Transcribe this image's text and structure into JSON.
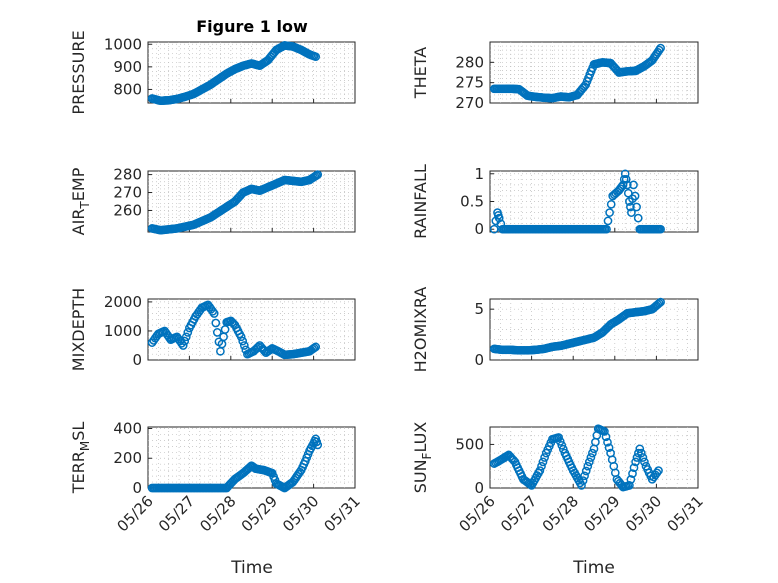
{
  "figure": {
    "title": "Figure 1 low",
    "xlabel": "Time",
    "marker_color": "#0072bd",
    "grid": true
  },
  "chart_data": [
    {
      "type": "scatter",
      "ylabel": "PRESSURE",
      "ylim": [
        740,
        1010
      ],
      "yticks": [
        "800",
        "900",
        "1000"
      ],
      "ytick_values": [
        800,
        900,
        1000
      ],
      "xlim": [
        0,
        5
      ],
      "xtick_labels": [
        "05/26",
        "05/27",
        "05/28",
        "05/29",
        "05/30",
        "05/31"
      ],
      "series": [
        {
          "x_days": [
            0.1,
            0.3,
            0.5,
            0.7,
            0.9,
            1.1,
            1.3,
            1.5,
            1.7,
            1.9,
            2.1,
            2.3,
            2.5,
            2.7,
            2.9,
            3.1,
            3.3,
            3.5,
            3.7,
            3.9,
            4.05
          ],
          "values": [
            760,
            750,
            752,
            758,
            768,
            780,
            800,
            820,
            845,
            870,
            890,
            905,
            915,
            905,
            930,
            975,
            995,
            990,
            975,
            955,
            945
          ]
        }
      ]
    },
    {
      "type": "scatter",
      "ylabel": "THETA",
      "ylim": [
        270,
        285
      ],
      "yticks": [
        "270",
        "275",
        "280"
      ],
      "ytick_values": [
        270,
        275,
        280
      ],
      "xlim": [
        0,
        5
      ],
      "xtick_labels": [
        "05/26",
        "05/27",
        "05/28",
        "05/29",
        "05/30",
        "05/31"
      ],
      "series": [
        {
          "x_days": [
            0.1,
            0.3,
            0.5,
            0.7,
            0.9,
            1.1,
            1.3,
            1.5,
            1.7,
            1.9,
            2.1,
            2.3,
            2.5,
            2.7,
            2.9,
            3.1,
            3.3,
            3.5,
            3.7,
            3.9,
            4.1
          ],
          "values": [
            273.5,
            273.5,
            273.5,
            273.4,
            271.8,
            271.5,
            271.3,
            271.2,
            271.6,
            271.4,
            272,
            274.5,
            279.5,
            280,
            279.8,
            277.5,
            277.8,
            277.9,
            279,
            280.5,
            283.5
          ]
        }
      ]
    },
    {
      "type": "scatter",
      "ylabel": "AIR_TEMP",
      "ylim": [
        248,
        282
      ],
      "yticks": [
        "260",
        "270",
        "280"
      ],
      "ytick_values": [
        260,
        270,
        280
      ],
      "xlim": [
        0,
        5
      ],
      "xtick_labels": [
        "05/26",
        "05/27",
        "05/28",
        "05/29",
        "05/30",
        "05/31"
      ],
      "series": [
        {
          "x_days": [
            0.1,
            0.3,
            0.5,
            0.7,
            0.9,
            1.1,
            1.3,
            1.5,
            1.7,
            1.9,
            2.1,
            2.3,
            2.5,
            2.7,
            2.9,
            3.1,
            3.3,
            3.5,
            3.7,
            3.9,
            4.1
          ],
          "values": [
            250,
            249,
            249.5,
            250,
            251,
            252,
            254,
            256,
            259,
            262,
            265,
            270,
            272,
            271,
            273,
            275,
            277,
            276.5,
            276,
            277,
            280
          ]
        }
      ]
    },
    {
      "type": "scatter",
      "ylabel": "RAINFALL",
      "ylim": [
        -0.05,
        1.05
      ],
      "yticks": [
        "0",
        "0.5",
        "1"
      ],
      "ytick_values": [
        0,
        0.5,
        1
      ],
      "xlim": [
        0,
        5
      ],
      "xtick_labels": [
        "05/26",
        "05/27",
        "05/28",
        "05/29",
        "05/30",
        "05/31"
      ],
      "series": [
        {
          "x_days": [
            0.1,
            0.18,
            0.22,
            0.3,
            0.5,
            0.8,
            1.2,
            1.6,
            2.0,
            2.4,
            2.8,
            2.95,
            3.1,
            3.2,
            3.25,
            3.3,
            3.35,
            3.4,
            3.45,
            3.6,
            3.8,
            4.0,
            4.1
          ],
          "values": [
            0,
            0.3,
            0.2,
            0,
            0,
            0,
            0,
            0,
            0,
            0,
            0,
            0.6,
            0.7,
            0.8,
            1,
            0.8,
            0.5,
            0.3,
            0.8,
            0,
            0,
            0,
            0
          ]
        }
      ]
    },
    {
      "type": "scatter",
      "ylabel": "MIXDEPTH",
      "ylim": [
        0,
        2100
      ],
      "yticks": [
        "0",
        "1000",
        "2000"
      ],
      "ytick_values": [
        0,
        1000,
        2000
      ],
      "xlim": [
        0,
        5
      ],
      "xtick_labels": [
        "05/26",
        "05/27",
        "05/28",
        "05/29",
        "05/30",
        "05/31"
      ],
      "series": [
        {
          "x_days": [
            0.1,
            0.25,
            0.4,
            0.55,
            0.7,
            0.85,
            1.0,
            1.15,
            1.3,
            1.45,
            1.6,
            1.75,
            1.9,
            2.0,
            2.1,
            2.25,
            2.4,
            2.55,
            2.7,
            2.85,
            3.0,
            3.15,
            3.3,
            3.5,
            3.7,
            3.9,
            4.05
          ],
          "values": [
            600,
            900,
            1000,
            700,
            800,
            500,
            1100,
            1500,
            1800,
            1900,
            1600,
            300,
            1300,
            1350,
            1200,
            800,
            200,
            300,
            500,
            250,
            400,
            300,
            180,
            200,
            250,
            300,
            450
          ]
        }
      ]
    },
    {
      "type": "scatter",
      "ylabel": "H2OMIXRA",
      "ylim": [
        0,
        6
      ],
      "yticks": [
        "0",
        "5"
      ],
      "ytick_values": [
        0,
        5
      ],
      "xlim": [
        0,
        5
      ],
      "xtick_labels": [
        "05/26",
        "05/27",
        "05/28",
        "05/29",
        "05/30",
        "05/31"
      ],
      "series": [
        {
          "x_days": [
            0.1,
            0.3,
            0.5,
            0.7,
            0.9,
            1.1,
            1.3,
            1.5,
            1.7,
            1.9,
            2.1,
            2.3,
            2.5,
            2.7,
            2.9,
            3.1,
            3.3,
            3.5,
            3.7,
            3.9,
            4.1
          ],
          "values": [
            1.1,
            1,
            1,
            0.95,
            0.95,
            1,
            1.1,
            1.3,
            1.4,
            1.6,
            1.8,
            2,
            2.2,
            2.7,
            3.5,
            4,
            4.6,
            4.7,
            4.8,
            5,
            5.7
          ]
        }
      ]
    },
    {
      "type": "scatter",
      "ylabel": "TERR_MSL",
      "ylim": [
        0,
        410
      ],
      "yticks": [
        "0",
        "200",
        "400"
      ],
      "ytick_values": [
        0,
        200,
        400
      ],
      "xlim": [
        0,
        5
      ],
      "xtick_labels": [
        "05/26",
        "05/27",
        "05/28",
        "05/29",
        "05/30",
        "05/31"
      ],
      "series": [
        {
          "x_days": [
            0.1,
            0.4,
            0.8,
            1.2,
            1.6,
            1.9,
            2.1,
            2.3,
            2.5,
            2.6,
            2.8,
            3.0,
            3.1,
            3.3,
            3.5,
            3.7,
            3.8,
            3.9,
            4.0,
            4.05,
            4.1
          ],
          "values": [
            0,
            0,
            0,
            0,
            0,
            0,
            60,
            100,
            150,
            130,
            120,
            100,
            30,
            0,
            40,
            120,
            180,
            250,
            300,
            330,
            290
          ]
        }
      ]
    },
    {
      "type": "scatter",
      "ylabel": "SUN_FLUX",
      "ylim": [
        0,
        700
      ],
      "yticks": [
        "0",
        "500"
      ],
      "ytick_values": [
        0,
        500
      ],
      "xlim": [
        0,
        5
      ],
      "xtick_labels": [
        "05/26",
        "05/27",
        "05/28",
        "05/29",
        "05/30",
        "05/31"
      ],
      "series": [
        {
          "x_days": [
            0.1,
            0.25,
            0.45,
            0.6,
            0.8,
            1.0,
            1.2,
            1.35,
            1.5,
            1.65,
            1.8,
            2.0,
            2.2,
            2.35,
            2.5,
            2.6,
            2.75,
            2.9,
            3.05,
            3.2,
            3.35,
            3.5,
            3.6,
            3.75,
            3.9,
            4.05
          ],
          "values": [
            280,
            320,
            380,
            300,
            100,
            30,
            200,
            400,
            560,
            580,
            400,
            200,
            30,
            250,
            450,
            680,
            650,
            400,
            100,
            10,
            30,
            300,
            450,
            250,
            100,
            200
          ]
        }
      ]
    }
  ]
}
